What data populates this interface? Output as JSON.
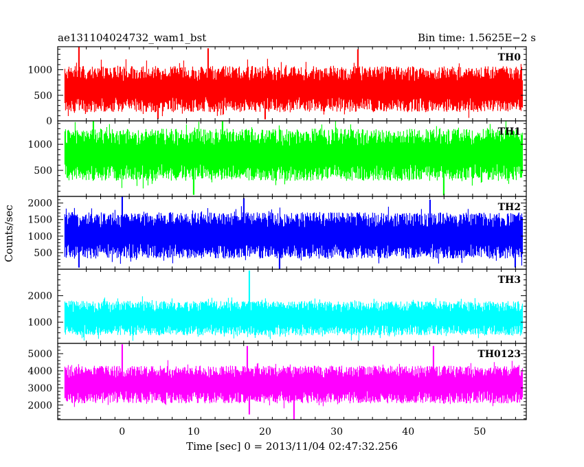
{
  "header": {
    "left_title": "ae131104024732_wam1_bst",
    "right_title": "Bin time: 1.5625E−2 s"
  },
  "chart_data": {
    "type": "line",
    "title": "ae131104024732_wam1_bst",
    "subtitle": "Bin time: 1.5625E−2 s",
    "xlabel": "Time [sec] 0 = 2013/11/04 02:47:32.256",
    "ylabel": "Counts/sec",
    "xlim": [
      -9,
      56.5
    ],
    "x_ticks": [
      0,
      10,
      20,
      30,
      40,
      50
    ],
    "x_data_range": [
      -8,
      56
    ],
    "bin_time": 0.015625,
    "grid": false,
    "legend": "none",
    "series": [
      {
        "name": "TH0",
        "color": "#ff0000",
        "ylim": [
          0,
          1450
        ],
        "y_ticks": [
          0,
          500,
          1000
        ],
        "base": 620,
        "spread": 450,
        "spikes": [
          [
            -6,
            1450
          ],
          [
            12,
            1420
          ],
          [
            33,
            1400
          ]
        ],
        "dips": [
          [
            5,
            40
          ],
          [
            20,
            30
          ]
        ]
      },
      {
        "name": "TH1",
        "color": "#00ff00",
        "ylim": [
          0,
          1450
        ],
        "y_ticks": [
          500,
          1000
        ],
        "base": 800,
        "spread": 500,
        "spikes": [
          [
            -4,
            1450
          ],
          [
            14,
            1440
          ]
        ],
        "dips": [
          [
            10,
            30
          ],
          [
            45,
            20
          ]
        ]
      },
      {
        "name": "TH2",
        "color": "#0000ff",
        "ylim": [
          0,
          2200
        ],
        "y_ticks": [
          500,
          1000,
          1500,
          2000
        ],
        "base": 1020,
        "spread": 700,
        "spikes": [
          [
            0,
            2200
          ],
          [
            17,
            2150
          ],
          [
            43,
            2100
          ]
        ],
        "dips": [
          [
            22,
            0
          ],
          [
            -6,
            50
          ],
          [
            55,
            50
          ]
        ]
      },
      {
        "name": "TH3",
        "color": "#00ffff",
        "ylim": [
          200,
          3000
        ],
        "y_ticks": [
          1000,
          2000
        ],
        "base": 1150,
        "spread": 650,
        "spikes": [
          [
            17.8,
            2950
          ]
        ],
        "dips": []
      },
      {
        "name": "TH0123",
        "color": "#ff00ff",
        "ylim": [
          1150,
          5600
        ],
        "y_ticks": [
          2000,
          3000,
          4000,
          5000
        ],
        "base": 3200,
        "spread": 1100,
        "spikes": [
          [
            0,
            5550
          ],
          [
            17.5,
            5450
          ],
          [
            43.5,
            5450
          ]
        ],
        "dips": [
          [
            24,
            1150
          ],
          [
            17.8,
            1450
          ]
        ]
      }
    ]
  }
}
